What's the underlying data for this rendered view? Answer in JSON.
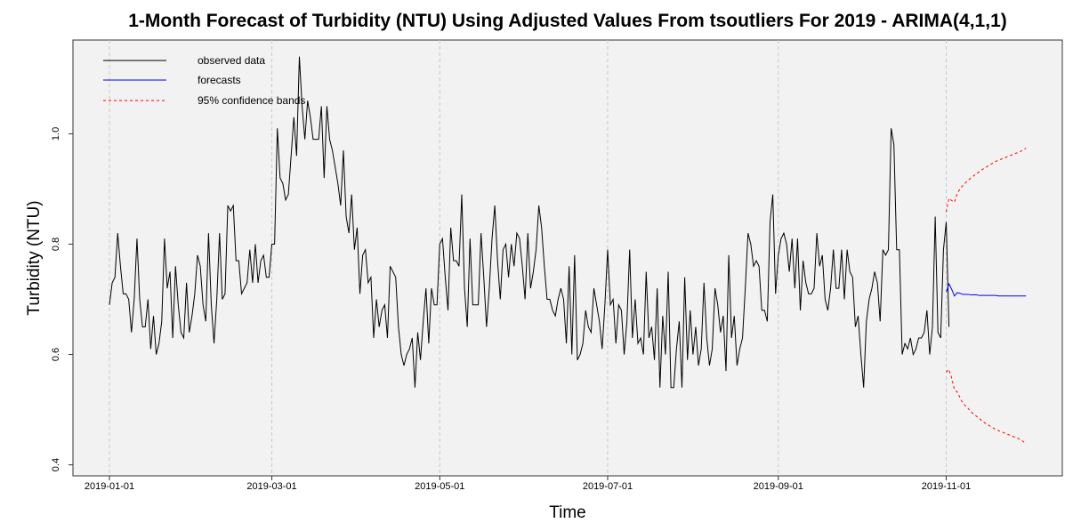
{
  "chart_data": {
    "type": "line",
    "title": "1-Month Forecast of Turbidity (NTU) Using Adjusted Values From tsoutliers For 2019 - ARIMA(4,1,1)",
    "xlabel": "Time",
    "ylabel": "Turbidity (NTU)",
    "ylim": [
      0.38,
      1.17
    ],
    "y_ticks": [
      0.4,
      0.6,
      0.8,
      1.0
    ],
    "y_tick_labels": [
      "0.4",
      "0.6",
      "0.8",
      "1.0"
    ],
    "x_ticks": [
      "2019-01-01",
      "2019-03-01",
      "2019-05-01",
      "2019-07-01",
      "2019-09-01",
      "2019-11-01"
    ],
    "x_tick_labels": [
      "2019-01-01",
      "2019-03-01",
      "2019-05-01",
      "2019-07-01",
      "2019-09-01",
      "2019-11-01"
    ],
    "grid": true,
    "legend": {
      "position": "top-left",
      "entries": [
        "observed data",
        "forecasts",
        "95% confidence bands"
      ]
    },
    "colors": {
      "observed": "#000000",
      "forecast": "#0000ff",
      "confidence": "#ff0000",
      "plot_bg": "#f2f2f2",
      "grid": "#c8c8c8"
    },
    "observed": {
      "start": "2019-01-01",
      "values": [
        0.69,
        0.73,
        0.74,
        0.82,
        0.76,
        0.71,
        0.71,
        0.7,
        0.64,
        0.7,
        0.81,
        0.7,
        0.65,
        0.65,
        0.7,
        0.61,
        0.67,
        0.6,
        0.62,
        0.66,
        0.81,
        0.72,
        0.75,
        0.63,
        0.76,
        0.69,
        0.64,
        0.63,
        0.73,
        0.64,
        0.67,
        0.71,
        0.78,
        0.76,
        0.69,
        0.66,
        0.82,
        0.69,
        0.62,
        0.7,
        0.82,
        0.7,
        0.71,
        0.87,
        0.86,
        0.87,
        0.77,
        0.77,
        0.71,
        0.72,
        0.73,
        0.79,
        0.73,
        0.8,
        0.73,
        0.77,
        0.78,
        0.74,
        0.74,
        0.8,
        0.8,
        1.01,
        0.92,
        0.91,
        0.88,
        0.89,
        0.96,
        1.03,
        0.96,
        1.14,
        1.05,
        0.99,
        1.06,
        1.03,
        0.99,
        0.99,
        0.99,
        1.05,
        0.92,
        1.05,
        0.99,
        0.97,
        0.94,
        0.91,
        0.87,
        0.97,
        0.85,
        0.82,
        0.89,
        0.79,
        0.83,
        0.71,
        0.78,
        0.79,
        0.73,
        0.74,
        0.63,
        0.7,
        0.65,
        0.68,
        0.69,
        0.63,
        0.76,
        0.75,
        0.74,
        0.65,
        0.6,
        0.58,
        0.6,
        0.61,
        0.63,
        0.54,
        0.64,
        0.59,
        0.66,
        0.72,
        0.62,
        0.72,
        0.69,
        0.69,
        0.8,
        0.81,
        0.74,
        0.68,
        0.83,
        0.77,
        0.77,
        0.76,
        0.89,
        0.72,
        0.65,
        0.81,
        0.69,
        0.69,
        0.69,
        0.82,
        0.74,
        0.65,
        0.72,
        0.81,
        0.87,
        0.77,
        0.7,
        0.79,
        0.8,
        0.74,
        0.8,
        0.76,
        0.82,
        0.81,
        0.76,
        0.7,
        0.82,
        0.72,
        0.75,
        0.79,
        0.87,
        0.83,
        0.76,
        0.7,
        0.7,
        0.68,
        0.67,
        0.7,
        0.72,
        0.7,
        0.62,
        0.76,
        0.6,
        0.78,
        0.59,
        0.6,
        0.62,
        0.68,
        0.65,
        0.64,
        0.72,
        0.69,
        0.66,
        0.61,
        0.69,
        0.79,
        0.69,
        0.7,
        0.62,
        0.69,
        0.68,
        0.6,
        0.66,
        0.79,
        0.63,
        0.7,
        0.62,
        0.63,
        0.6,
        0.75,
        0.63,
        0.65,
        0.59,
        0.72,
        0.54,
        0.67,
        0.6,
        0.75,
        0.54,
        0.54,
        0.61,
        0.66,
        0.54,
        0.74,
        0.59,
        0.68,
        0.6,
        0.65,
        0.58,
        0.61,
        0.73,
        0.63,
        0.58,
        0.61,
        0.72,
        0.69,
        0.64,
        0.67,
        0.57,
        0.78,
        0.63,
        0.67,
        0.58,
        0.61,
        0.63,
        0.72,
        0.82,
        0.8,
        0.76,
        0.77,
        0.76,
        0.68,
        0.68,
        0.66,
        0.84,
        0.89,
        0.71,
        0.78,
        0.81,
        0.82,
        0.8,
        0.75,
        0.81,
        0.72,
        0.81,
        0.68,
        0.77,
        0.73,
        0.71,
        0.71,
        0.72,
        0.82,
        0.76,
        0.78,
        0.7,
        0.68,
        0.72,
        0.79,
        0.72,
        0.72,
        0.79,
        0.7,
        0.79,
        0.75,
        0.74,
        0.65,
        0.67,
        0.6,
        0.54,
        0.66,
        0.7,
        0.72,
        0.75,
        0.73,
        0.66,
        0.79,
        0.78,
        0.79,
        1.01,
        0.98,
        0.79,
        0.79,
        0.6,
        0.62,
        0.61,
        0.63,
        0.6,
        0.61,
        0.63,
        0.63,
        0.64,
        0.68,
        0.6,
        0.65,
        0.85,
        0.64,
        0.63,
        0.79,
        0.84,
        0.65
      ]
    },
    "forecast": {
      "start": "2019-11-01",
      "values": [
        0.713,
        0.728,
        0.718,
        0.706,
        0.712,
        0.711,
        0.709,
        0.709,
        0.709,
        0.708,
        0.708,
        0.708,
        0.707,
        0.707,
        0.707,
        0.707,
        0.707,
        0.707,
        0.707,
        0.706,
        0.706,
        0.706,
        0.706,
        0.706,
        0.706,
        0.706,
        0.706,
        0.706,
        0.706,
        0.706
      ],
      "upper": [
        0.858,
        0.883,
        0.879,
        0.876,
        0.892,
        0.9,
        0.906,
        0.911,
        0.916,
        0.92,
        0.924,
        0.928,
        0.931,
        0.935,
        0.938,
        0.941,
        0.944,
        0.947,
        0.95,
        0.952,
        0.954,
        0.956,
        0.958,
        0.96,
        0.962,
        0.964,
        0.966,
        0.968,
        0.971,
        0.974
      ],
      "lower": [
        0.568,
        0.573,
        0.557,
        0.536,
        0.532,
        0.522,
        0.512,
        0.507,
        0.502,
        0.496,
        0.492,
        0.488,
        0.484,
        0.48,
        0.476,
        0.473,
        0.47,
        0.467,
        0.464,
        0.462,
        0.46,
        0.458,
        0.456,
        0.454,
        0.452,
        0.45,
        0.448,
        0.446,
        0.442,
        0.438
      ]
    }
  }
}
